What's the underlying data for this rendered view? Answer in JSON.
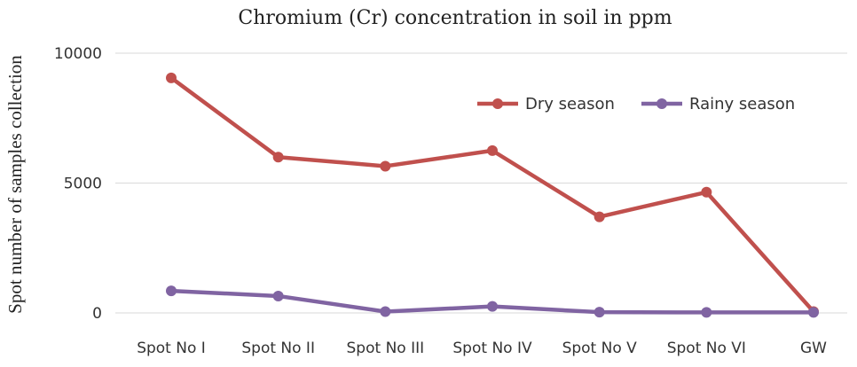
{
  "chart_data": {
    "type": "line",
    "title": "Chromium (Cr) concentration in soil in ppm",
    "xlabel": "",
    "ylabel": "Spot number of samples collection",
    "categories": [
      "Spot No I",
      "Spot No II",
      "Spot No III",
      "Spot No IV",
      "Spot No V",
      "Spot No VI",
      "GW"
    ],
    "yticks": [
      0,
      5000,
      10000
    ],
    "ylim": [
      0,
      10000
    ],
    "grid": true,
    "legend_position": "top-right",
    "series": [
      {
        "name": "Dry season",
        "color": "#c0504d",
        "values": [
          9050,
          6000,
          5650,
          6250,
          3700,
          4650,
          50
        ]
      },
      {
        "name": "Rainy season",
        "color": "#8064a2",
        "values": [
          850,
          650,
          50,
          250,
          30,
          20,
          20
        ]
      }
    ]
  }
}
